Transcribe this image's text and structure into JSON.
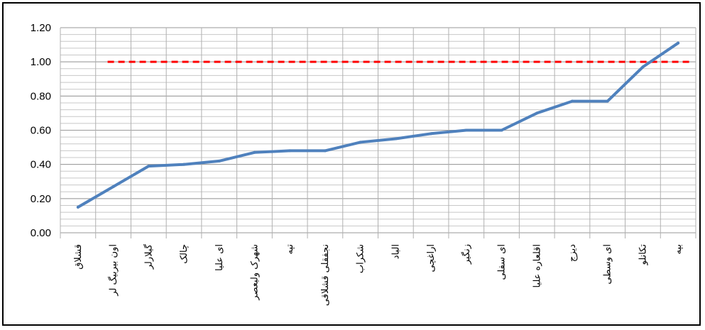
{
  "chart_data": {
    "type": "line",
    "title": "",
    "xlabel": "",
    "ylabel": "",
    "ylim": [
      0,
      1.2
    ],
    "yticks": [
      "0.00",
      "0.20",
      "0.40",
      "0.60",
      "0.80",
      "1.00",
      "1.20"
    ],
    "grid": true,
    "categories": [
      "قشلاق",
      "اون بيربيگ لر",
      "گيلارلر",
      "چالک",
      "اى عليا",
      "شهرک وليعصر",
      "تپه",
      "نجفقلى قشلاقى",
      "شکراب",
      "الباد",
      "اراغچى",
      "زنگير",
      "اى سفلى",
      "اقلعاره عليا",
      "دیزج",
      "اى وسطى",
      "تکانلو",
      "بپه"
    ],
    "series": [
      {
        "values": [
          0.15,
          0.27,
          0.39,
          0.4,
          0.42,
          0.47,
          0.48,
          0.48,
          0.53,
          0.55,
          0.58,
          0.6,
          0.6,
          0.7,
          0.77,
          0.77,
          0.97,
          1.11
        ],
        "color": "#4f81bd"
      }
    ],
    "reference_line": {
      "value": 1.0,
      "color": "#ff0000",
      "style": "dashed"
    }
  }
}
